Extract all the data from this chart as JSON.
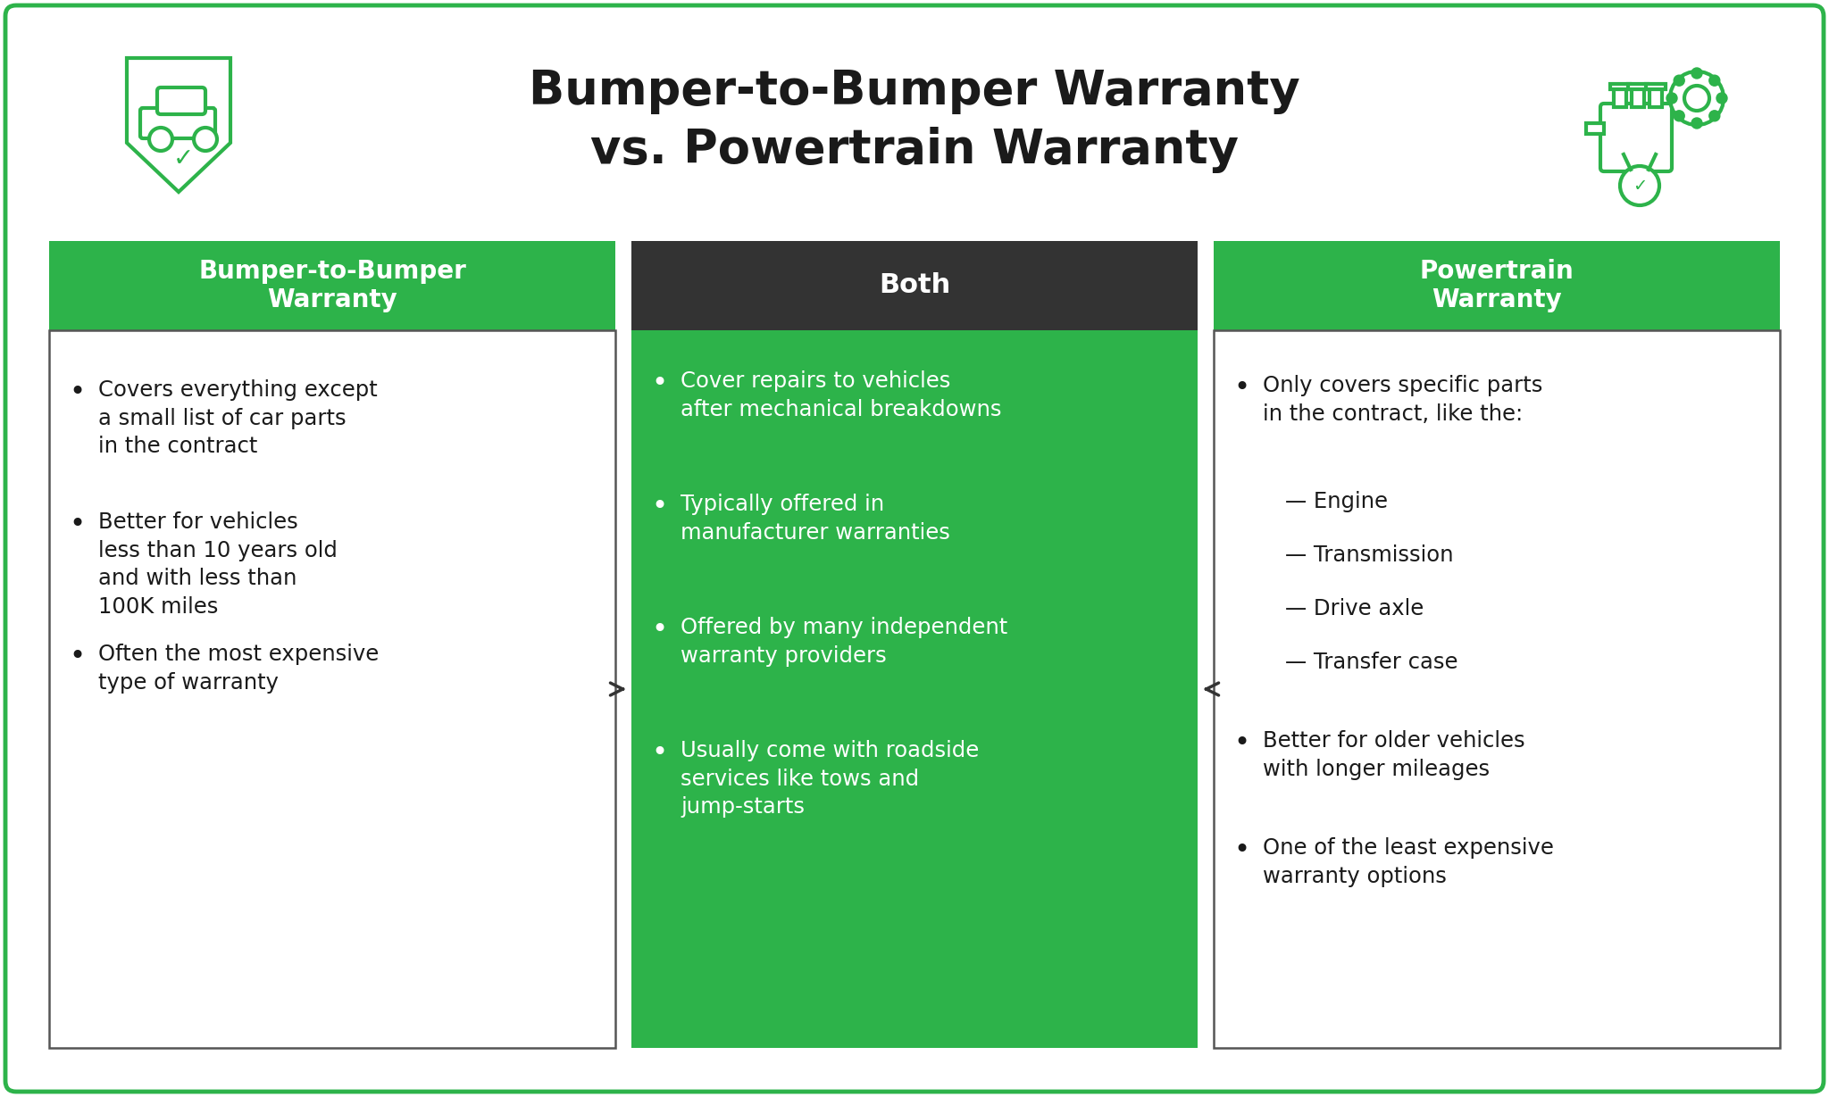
{
  "title_line1": "Bumper-to-Bumper Warranty",
  "title_line2": "vs. Powertrain Warranty",
  "title_color": "#1a1a1a",
  "background_color": "#ffffff",
  "border_color": "#2db34a",
  "green_header_color": "#2db34a",
  "dark_header_color": "#333333",
  "green_body_color": "#2db34a",
  "white_body_color": "#ffffff",
  "header_text_color": "#ffffff",
  "body_text_dark": "#1a1a1a",
  "body_text_light": "#ffffff",
  "col1_header": "Bumper-to-Bumper\nWarranty",
  "col2_header": "Both",
  "col3_header": "Powertrain\nWarranty",
  "col1_bullets": [
    "Covers everything except\na small list of car parts\nin the contract",
    "Better for vehicles\nless than 10 years old\nand with less than\n100K miles",
    "Often the most expensive\ntype of warranty"
  ],
  "col2_bullets": [
    "Cover repairs to vehicles\nafter mechanical breakdowns",
    "Typically offered in\nmanufacturer warranties",
    "Offered by many independent\nwarranty providers",
    "Usually come with roadside\nservices like tows and\njump-starts"
  ],
  "col3_main_bullet": "Only covers specific parts\nin the contract, like the:",
  "col3_sub_items": [
    "— Engine",
    "— Transmission",
    "— Drive axle",
    "— Transfer case"
  ],
  "col3_extra_bullets": [
    "Better for older vehicles\nwith longer mileages",
    "One of the least expensive\nwarranty options"
  ],
  "figsize": [
    20.48,
    12.29
  ],
  "dpi": 100
}
